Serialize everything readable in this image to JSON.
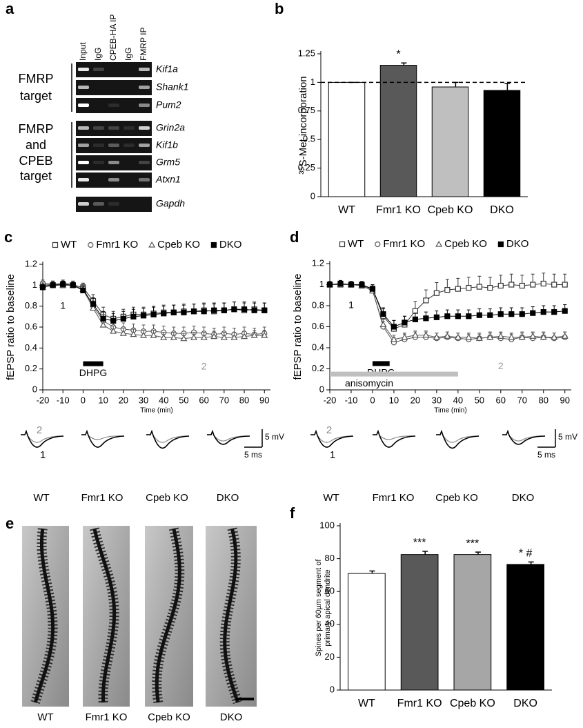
{
  "gel": {
    "panel_label": "a",
    "lanes": [
      "Input",
      "IgG",
      "CPEB-HA IP",
      "IgG",
      "FMRP IP"
    ],
    "groups": [
      {
        "label": [
          "FMRP",
          "target"
        ],
        "genes": [
          "Kif1a",
          "Shank1",
          "Pum2"
        ]
      },
      {
        "label": [
          "FMRP",
          "and",
          "CPEB",
          "target"
        ],
        "genes": [
          "Grin2a",
          "Kif1b",
          "Grm5",
          "Atxn1"
        ]
      },
      {
        "genes": [
          "Gapdh"
        ]
      }
    ]
  },
  "chart_data": [
    {
      "type": "bar",
      "panel_label": "b",
      "ylabel": "³⁵S-Met incorporation",
      "categories": [
        "WT",
        "Fmr1 KO",
        "Cpeb KO",
        "DKO"
      ],
      "values": [
        1,
        1.15,
        0.96,
        0.93
      ],
      "errors": [
        0,
        0.02,
        0.04,
        0.06
      ],
      "markers": [
        null,
        "*",
        null,
        null
      ],
      "colors": [
        "#ffffff",
        "#595959",
        "#bfbfbf",
        "#000000"
      ],
      "reference_line": 1,
      "ylim": [
        0,
        1.25
      ],
      "yticks": [
        0,
        0.25,
        0.5,
        0.75,
        1,
        1.25
      ]
    },
    {
      "type": "line",
      "panel_label": "c",
      "xlabel": "Time (min)",
      "ylabel": "fEPSP ratio to baseline",
      "xlim": [
        -20,
        93
      ],
      "xticks": [
        -20,
        -10,
        0,
        10,
        20,
        30,
        40,
        50,
        60,
        70,
        80,
        90
      ],
      "ylim": [
        0,
        1.2
      ],
      "yticks": [
        0,
        0.2,
        0.4,
        0.6,
        0.8,
        1,
        1.2
      ],
      "x": [
        -20,
        -15,
        -10,
        -5,
        0,
        5,
        10,
        15,
        20,
        25,
        30,
        35,
        40,
        45,
        50,
        55,
        60,
        65,
        70,
        75,
        80,
        85,
        90
      ],
      "series": [
        {
          "name": "WT",
          "marker": "square-open",
          "color": "#333333",
          "values": [
            1,
            1,
            1,
            1,
            0.98,
            0.85,
            0.72,
            0.68,
            0.7,
            0.72,
            0.72,
            0.73,
            0.74,
            0.74,
            0.75,
            0.75,
            0.76,
            0.75,
            0.76,
            0.77,
            0.76,
            0.77,
            0.76
          ],
          "errors": [
            0.03,
            0.03,
            0.03,
            0.03,
            0.04,
            0.06,
            0.07,
            0.07,
            0.07,
            0.07,
            0.07,
            0.07,
            0.07,
            0.07,
            0.07,
            0.07,
            0.07,
            0.07,
            0.07,
            0.07,
            0.07,
            0.07,
            0.07
          ]
        },
        {
          "name": "Fmr1 KO",
          "marker": "circle-open",
          "color": "#555555",
          "values": [
            1.02,
            1.01,
            1.02,
            1.01,
            0.97,
            0.8,
            0.66,
            0.6,
            0.58,
            0.57,
            0.56,
            0.56,
            0.55,
            0.54,
            0.54,
            0.55,
            0.54,
            0.53,
            0.54,
            0.53,
            0.54,
            0.53,
            0.54
          ],
          "errors": [
            0.03,
            0.03,
            0.03,
            0.03,
            0.04,
            0.05,
            0.06,
            0.06,
            0.06,
            0.06,
            0.06,
            0.06,
            0.06,
            0.06,
            0.06,
            0.06,
            0.06,
            0.06,
            0.06,
            0.06,
            0.06,
            0.06,
            0.06
          ]
        },
        {
          "name": "Cpeb KO",
          "marker": "triangle-open",
          "color": "#555555",
          "values": [
            1,
            1.01,
            1,
            1,
            0.96,
            0.78,
            0.62,
            0.56,
            0.54,
            0.53,
            0.52,
            0.52,
            0.5,
            0.5,
            0.49,
            0.5,
            0.5,
            0.51,
            0.5,
            0.5,
            0.51,
            0.52,
            0.52
          ],
          "errors": [
            0.03,
            0.03,
            0.03,
            0.03,
            0.04,
            0.05,
            0.05,
            0.05,
            0.05,
            0.05,
            0.05,
            0.05,
            0.05,
            0.05,
            0.05,
            0.05,
            0.05,
            0.05,
            0.05,
            0.05,
            0.05,
            0.05,
            0.05
          ]
        },
        {
          "name": "DKO",
          "marker": "square-filled",
          "color": "#000000",
          "values": [
            0.98,
            1,
            1.01,
            1,
            0.95,
            0.82,
            0.68,
            0.66,
            0.68,
            0.7,
            0.71,
            0.72,
            0.73,
            0.74,
            0.74,
            0.75,
            0.75,
            0.76,
            0.76,
            0.77,
            0.77,
            0.76,
            0.76
          ],
          "errors": [
            0.03,
            0.03,
            0.03,
            0.03,
            0.04,
            0.06,
            0.07,
            0.07,
            0.07,
            0.07,
            0.07,
            0.07,
            0.07,
            0.07,
            0.07,
            0.07,
            0.07,
            0.07,
            0.07,
            0.07,
            0.07,
            0.07,
            0.07
          ]
        }
      ],
      "periods": [
        {
          "label": "DHPG",
          "start": 0,
          "end": 10
        }
      ],
      "sweep_labels": [
        "1",
        "2"
      ],
      "trace_labels": [
        "WT",
        "Fmr1 KO",
        "Cpeb KO",
        "DKO"
      ],
      "scale_labels": [
        "5 mV",
        "5 ms"
      ]
    },
    {
      "type": "line",
      "panel_label": "d",
      "xlabel": "Time (min)",
      "ylabel": "fEPSP ratio to baseline",
      "xlim": [
        -20,
        93
      ],
      "xticks": [
        -20,
        -10,
        0,
        10,
        20,
        30,
        40,
        50,
        60,
        70,
        80,
        90
      ],
      "ylim": [
        0,
        1.2
      ],
      "yticks": [
        0,
        0.2,
        0.4,
        0.6,
        0.8,
        1,
        1.2
      ],
      "x": [
        -20,
        -15,
        -10,
        -5,
        0,
        5,
        10,
        15,
        20,
        25,
        30,
        35,
        40,
        45,
        50,
        55,
        60,
        65,
        70,
        75,
        80,
        85,
        90
      ],
      "series": [
        {
          "name": "WT",
          "marker": "square-open",
          "color": "#333333",
          "values": [
            1,
            1,
            1,
            0.99,
            0.96,
            0.7,
            0.58,
            0.62,
            0.75,
            0.85,
            0.92,
            0.95,
            0.96,
            0.97,
            0.98,
            0.97,
            0.99,
            1,
            0.99,
            1,
            1.01,
            1,
            1
          ],
          "errors": [
            0.03,
            0.03,
            0.03,
            0.03,
            0.04,
            0.07,
            0.08,
            0.08,
            0.09,
            0.1,
            0.1,
            0.1,
            0.1,
            0.1,
            0.1,
            0.1,
            0.1,
            0.1,
            0.1,
            0.1,
            0.1,
            0.1,
            0.1
          ]
        },
        {
          "name": "Fmr1 KO",
          "marker": "circle-open",
          "color": "#555555",
          "values": [
            1,
            1,
            1,
            1,
            0.95,
            0.6,
            0.45,
            0.48,
            0.5,
            0.5,
            0.49,
            0.5,
            0.49,
            0.48,
            0.49,
            0.5,
            0.49,
            0.48,
            0.5,
            0.49,
            0.5,
            0.49,
            0.5
          ],
          "errors": [
            0.03,
            0.03,
            0.03,
            0.03,
            0.04,
            0.05,
            0.05,
            0.05,
            0.05,
            0.05,
            0.05,
            0.05,
            0.05,
            0.05,
            0.05,
            0.05,
            0.05,
            0.05,
            0.05,
            0.05,
            0.05,
            0.05,
            0.05
          ]
        },
        {
          "name": "Cpeb KO",
          "marker": "triangle-open",
          "color": "#555555",
          "values": [
            1,
            1,
            1,
            0.99,
            0.94,
            0.62,
            0.48,
            0.5,
            0.52,
            0.52,
            0.5,
            0.51,
            0.5,
            0.5,
            0.49,
            0.5,
            0.51,
            0.5,
            0.5,
            0.51,
            0.5,
            0.5,
            0.51
          ],
          "errors": [
            0.03,
            0.03,
            0.03,
            0.03,
            0.04,
            0.05,
            0.04,
            0.04,
            0.04,
            0.04,
            0.04,
            0.04,
            0.04,
            0.04,
            0.04,
            0.04,
            0.04,
            0.04,
            0.04,
            0.04,
            0.04,
            0.04,
            0.04
          ]
        },
        {
          "name": "DKO",
          "marker": "square-filled",
          "color": "#000000",
          "values": [
            1,
            1.01,
            1,
            1,
            0.96,
            0.72,
            0.6,
            0.64,
            0.67,
            0.68,
            0.69,
            0.7,
            0.7,
            0.7,
            0.71,
            0.71,
            0.72,
            0.72,
            0.72,
            0.73,
            0.74,
            0.74,
            0.75
          ],
          "errors": [
            0.03,
            0.03,
            0.03,
            0.03,
            0.04,
            0.06,
            0.06,
            0.06,
            0.06,
            0.06,
            0.06,
            0.06,
            0.06,
            0.06,
            0.06,
            0.06,
            0.06,
            0.06,
            0.06,
            0.06,
            0.06,
            0.06,
            0.06
          ]
        }
      ],
      "periods": [
        {
          "label": "DHPG",
          "start": 0,
          "end": 8
        },
        {
          "label": "anisomycin",
          "start": -20,
          "end": 40
        }
      ],
      "sweep_labels": [
        "1",
        "2"
      ],
      "trace_labels": [
        "WT",
        "Fmr1 KO",
        "Cpeb KO",
        "DKO"
      ],
      "scale_labels": [
        "5 mV",
        "5 ms"
      ]
    },
    {
      "type": "bar",
      "panel_label": "f",
      "ylabel": [
        "Spines per 60µm segment of",
        "primary apical dendrite"
      ],
      "categories": [
        "WT",
        "Fmr1 KO",
        "Cpeb KO",
        "DKO"
      ],
      "values": [
        71,
        82.5,
        82.5,
        76.5
      ],
      "errors": [
        1.5,
        2,
        1.5,
        1.5
      ],
      "markers": [
        null,
        "***",
        "***",
        "* #"
      ],
      "colors": [
        "#ffffff",
        "#595959",
        "#a6a6a6",
        "#000000"
      ],
      "ylim": [
        0,
        100
      ],
      "yticks": [
        0,
        20,
        40,
        60,
        80,
        100
      ]
    }
  ],
  "micrographs": {
    "panel_label": "e",
    "labels": [
      "WT",
      "Fmr1 KO",
      "Cpeb KO",
      "DKO"
    ]
  }
}
